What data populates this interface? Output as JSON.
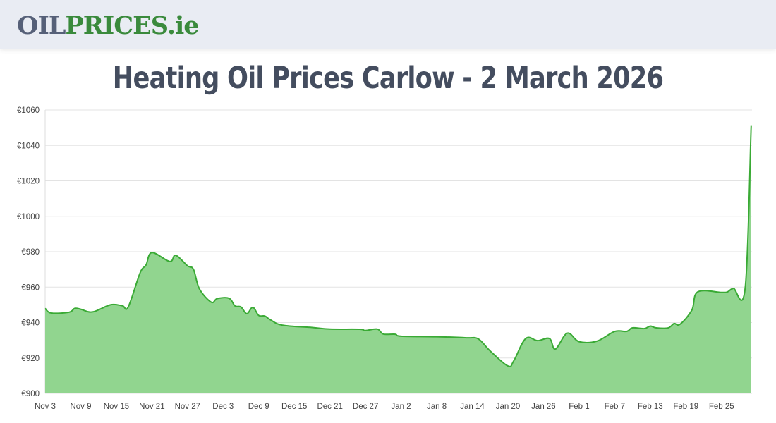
{
  "header": {
    "logo_part1": "OIL",
    "logo_part2": "PRICES.ie"
  },
  "page_title": "Heating Oil Prices Carlow - 2 March 2026",
  "colors": {
    "line": "#3aaa35",
    "fill": "#91d58f",
    "grid": "#e3e3e3"
  },
  "chart_data": {
    "type": "area",
    "title": "",
    "xlabel": "",
    "ylabel": "",
    "ylim": [
      900,
      1060
    ],
    "grid": true,
    "y_ticks": [
      "€900",
      "€920",
      "€940",
      "€960",
      "€980",
      "€1000",
      "€1020",
      "€1040",
      "€1060"
    ],
    "x_ticks": [
      "Nov 3",
      "Nov 9",
      "Nov 15",
      "Nov 21",
      "Nov 27",
      "Dec 3",
      "Dec 9",
      "Dec 15",
      "Dec 21",
      "Dec 27",
      "Jan 2",
      "Jan 8",
      "Jan 14",
      "Jan 20",
      "Jan 26",
      "Feb 1",
      "Feb 7",
      "Feb 13",
      "Feb 19",
      "Feb 25"
    ],
    "points": [
      [
        "Nov 3",
        948
      ],
      [
        "Nov 4",
        945.4
      ],
      [
        "Nov 7",
        945.8
      ],
      [
        "Nov 8",
        948
      ],
      [
        "Nov 9",
        947.5
      ],
      [
        "Nov 11",
        946
      ],
      [
        "Nov 14",
        950
      ],
      [
        "Nov 16",
        949.5
      ],
      [
        "Nov 17",
        948.8
      ],
      [
        "Nov 19",
        968
      ],
      [
        "Nov 20",
        972.5
      ],
      [
        "Nov 21",
        979.5
      ],
      [
        "Nov 24",
        974.5
      ],
      [
        "Nov 25",
        978
      ],
      [
        "Nov 27",
        972
      ],
      [
        "Nov 28",
        970
      ],
      [
        "Nov 29",
        959
      ],
      [
        "Dec 1",
        951.5
      ],
      [
        "Dec 2",
        953.5
      ],
      [
        "Dec 4",
        953.7
      ],
      [
        "Dec 5",
        949.4
      ],
      [
        "Dec 6",
        948.8
      ],
      [
        "Dec 7",
        945
      ],
      [
        "Dec 8",
        948.6
      ],
      [
        "Dec 9",
        944
      ],
      [
        "Dec 10",
        943.7
      ],
      [
        "Dec 11",
        941.5
      ],
      [
        "Dec 13",
        938.5
      ],
      [
        "Dec 18",
        937.2
      ],
      [
        "Dec 21",
        936.3
      ],
      [
        "Dec 26",
        936.2
      ],
      [
        "Dec 27",
        935.5
      ],
      [
        "Dec 29",
        936.3
      ],
      [
        "Dec 30",
        933.5
      ],
      [
        "Jan 1",
        933.4
      ],
      [
        "Jan 2",
        932.3
      ],
      [
        "Jan 8",
        932
      ],
      [
        "Jan 13",
        931.4
      ],
      [
        "Jan 15",
        930.8
      ],
      [
        "Jan 17",
        924
      ],
      [
        "Jan 20",
        915.5
      ],
      [
        "Jan 21",
        918.5
      ],
      [
        "Jan 23",
        931
      ],
      [
        "Jan 25",
        929.8
      ],
      [
        "Jan 27",
        931
      ],
      [
        "Jan 28",
        925
      ],
      [
        "Jan 30",
        934
      ],
      [
        "Feb 1",
        929.2
      ],
      [
        "Feb 4",
        929.5
      ],
      [
        "Feb 7",
        935
      ],
      [
        "Feb 9",
        935
      ],
      [
        "Feb 10",
        937
      ],
      [
        "Feb 12",
        936.6
      ],
      [
        "Feb 13",
        938
      ],
      [
        "Feb 14",
        937
      ],
      [
        "Feb 16",
        937
      ],
      [
        "Feb 17",
        939.4
      ],
      [
        "Feb 18",
        939
      ],
      [
        "Feb 20",
        947
      ],
      [
        "Feb 21",
        957.3
      ],
      [
        "Feb 25",
        957
      ],
      [
        "Feb 26",
        957.3
      ],
      [
        "Feb 27",
        959.3
      ],
      [
        "Mar 1",
        959.7
      ],
      [
        "Mar 2",
        1051
      ]
    ]
  }
}
